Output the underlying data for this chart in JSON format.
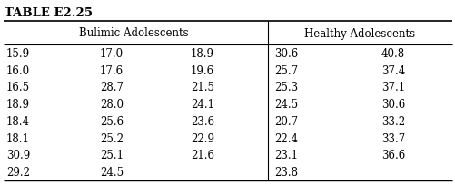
{
  "title": "TABLE E2.25",
  "col_header_bulimic": "Bulimic Adolescents",
  "col_header_healthy": "Healthy Adolescents",
  "bulimic_col1": [
    "15.9",
    "16.0",
    "16.5",
    "18.9",
    "18.4",
    "18.1",
    "30.9",
    "29.2"
  ],
  "bulimic_col2": [
    "17.0",
    "17.6",
    "28.7",
    "28.0",
    "25.6",
    "25.2",
    "25.1",
    "24.5"
  ],
  "bulimic_col3": [
    "18.9",
    "19.6",
    "21.5",
    "24.1",
    "23.6",
    "22.9",
    "21.6",
    ""
  ],
  "healthy_col1": [
    "30.6",
    "25.7",
    "25.3",
    "24.5",
    "20.7",
    "22.4",
    "23.1",
    "23.8"
  ],
  "healthy_col2": [
    "40.8",
    "37.4",
    "37.1",
    "30.6",
    "33.2",
    "33.7",
    "36.6",
    ""
  ],
  "bg_color": "#ffffff",
  "text_color": "#000000",
  "title_fontsize": 9.5,
  "header_fontsize": 8.5,
  "data_fontsize": 8.5
}
